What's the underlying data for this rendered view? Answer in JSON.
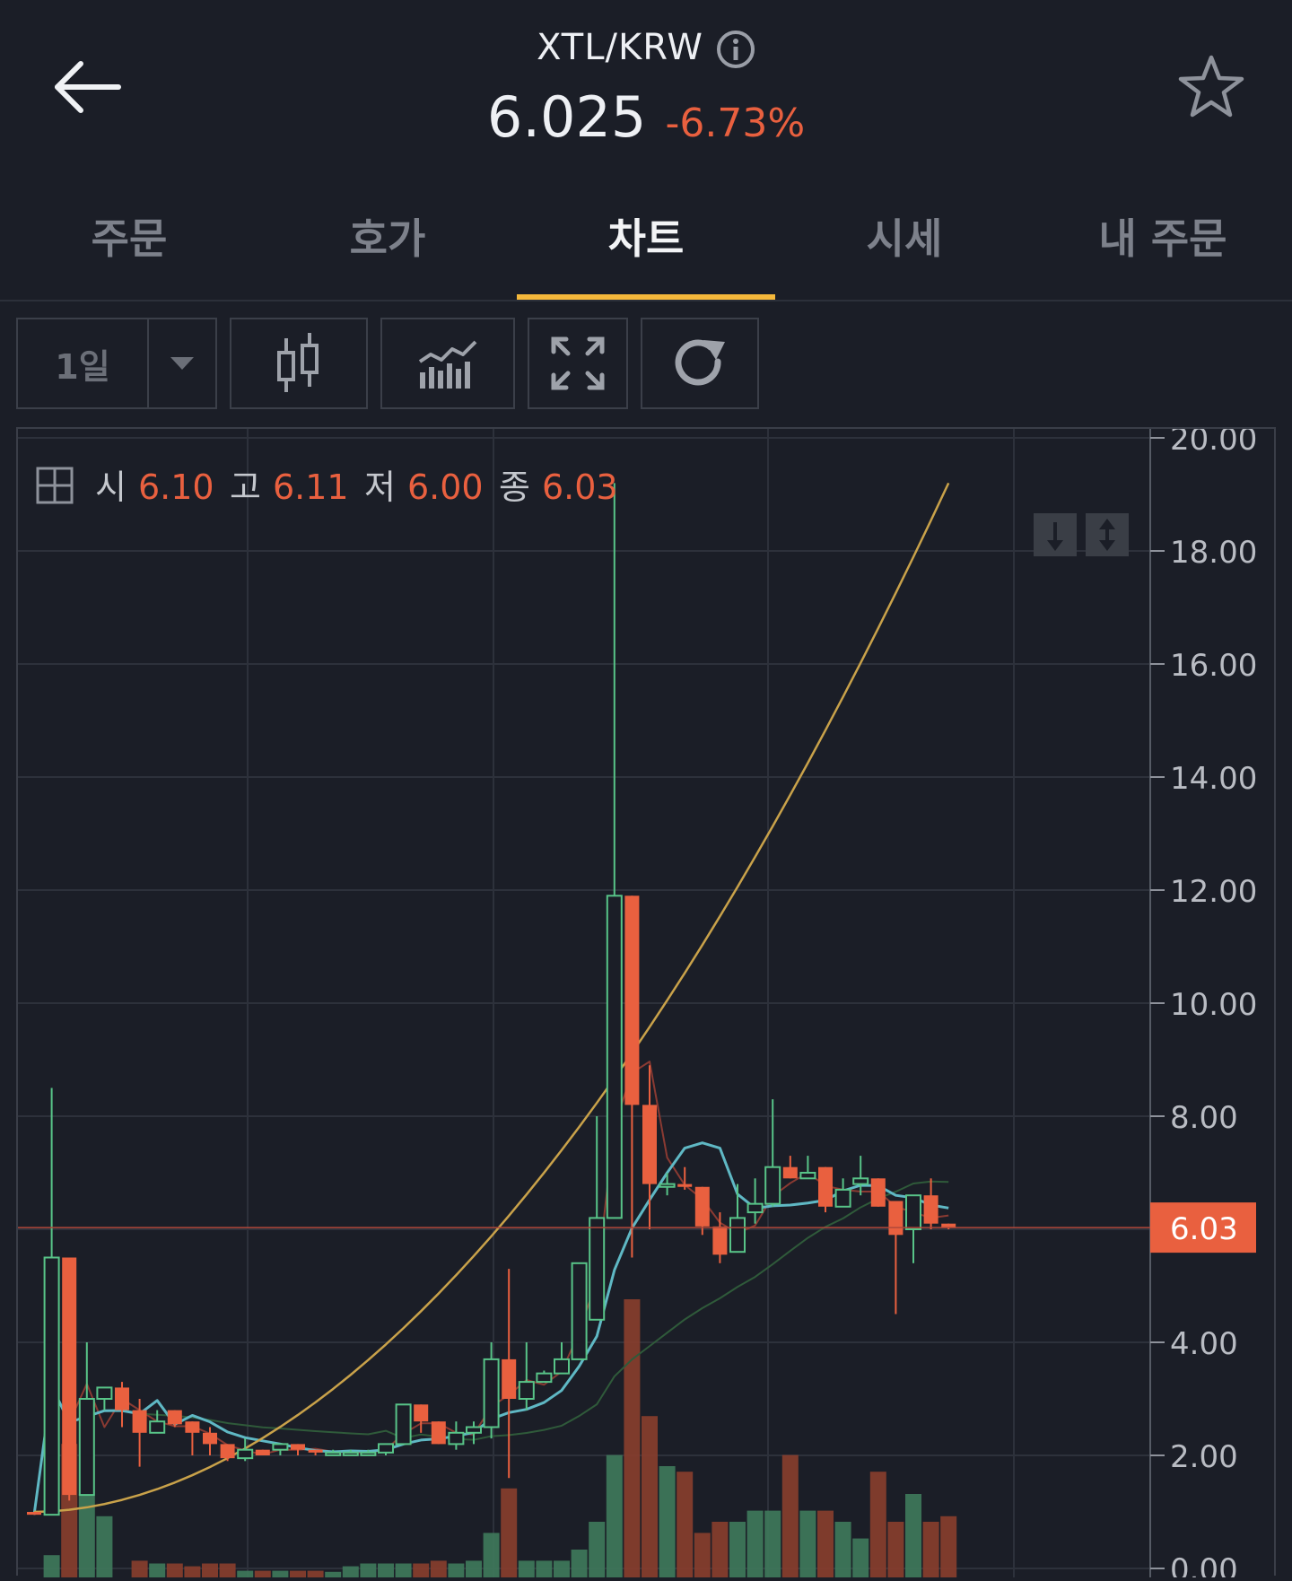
{
  "header": {
    "pair": "XTL/KRW",
    "price": "6.025",
    "change": "-6.73%"
  },
  "tabs": [
    {
      "label": "주문"
    },
    {
      "label": "호가"
    },
    {
      "label": "차트"
    },
    {
      "label": "시세"
    },
    {
      "label": "내 주문"
    }
  ],
  "toolbar": {
    "period": "1일"
  },
  "ohlc": {
    "open_label": "시",
    "open": "6.10",
    "high_label": "고",
    "high": "6.11",
    "low_label": "저",
    "low": "6.00",
    "close_label": "종",
    "close": "6.03"
  },
  "colors": {
    "up": "#58c488",
    "down": "#e9603f",
    "ma_short": "#5fb8c4",
    "ma_long": "#c9a24a",
    "background": "#1b1e27"
  },
  "chart_data": {
    "type": "candlestick",
    "ylim": [
      0,
      20
    ],
    "yticks": [
      "20.00",
      "18.00",
      "16.00",
      "14.00",
      "12.00",
      "10.00",
      "8.00",
      "6.03",
      "4.00",
      "2.00",
      "0.00"
    ],
    "current_price": 6.03,
    "candles": [
      [
        1.0,
        1.0,
        0.95,
        0.95
      ],
      [
        0.95,
        8.5,
        0.95,
        5.5
      ],
      [
        5.5,
        5.5,
        1.2,
        1.3
      ],
      [
        1.3,
        4.0,
        1.3,
        3.0
      ],
      [
        3.0,
        3.2,
        2.8,
        3.2
      ],
      [
        3.2,
        3.3,
        2.5,
        2.8
      ],
      [
        2.8,
        3.0,
        1.8,
        2.4
      ],
      [
        2.4,
        2.8,
        2.4,
        2.6
      ],
      [
        2.8,
        2.8,
        2.5,
        2.55
      ],
      [
        2.6,
        2.6,
        2.0,
        2.4
      ],
      [
        2.4,
        2.5,
        2.0,
        2.2
      ],
      [
        2.2,
        2.2,
        1.9,
        1.95
      ],
      [
        1.95,
        2.3,
        1.9,
        2.1
      ],
      [
        2.1,
        2.1,
        2.0,
        2.0
      ],
      [
        2.1,
        2.2,
        2.0,
        2.2
      ],
      [
        2.2,
        2.2,
        2.0,
        2.1
      ],
      [
        2.1,
        2.1,
        2.0,
        2.05
      ],
      [
        2.05,
        2.1,
        2.0,
        2.05
      ],
      [
        2.05,
        2.1,
        2.0,
        2.05
      ],
      [
        2.05,
        2.1,
        2.0,
        2.05
      ],
      [
        2.05,
        2.2,
        2.0,
        2.2
      ],
      [
        2.2,
        2.9,
        2.2,
        2.9
      ],
      [
        2.9,
        2.9,
        2.4,
        2.6
      ],
      [
        2.6,
        2.6,
        2.2,
        2.2
      ],
      [
        2.2,
        2.6,
        2.1,
        2.4
      ],
      [
        2.4,
        2.6,
        2.2,
        2.5
      ],
      [
        2.5,
        4.0,
        2.3,
        3.7
      ],
      [
        3.7,
        5.3,
        1.6,
        3.0
      ],
      [
        3.0,
        4.0,
        2.8,
        3.3
      ],
      [
        3.3,
        3.5,
        3.3,
        3.45
      ],
      [
        3.45,
        4.0,
        3.45,
        3.7
      ],
      [
        3.7,
        5.4,
        3.7,
        5.4
      ],
      [
        4.4,
        8.0,
        4.4,
        6.2
      ],
      [
        6.2,
        19.2,
        6.2,
        11.9
      ],
      [
        11.9,
        11.9,
        5.5,
        8.2
      ],
      [
        8.2,
        8.9,
        6.0,
        6.8
      ],
      [
        6.75,
        7.0,
        6.6,
        6.8
      ],
      [
        6.8,
        7.1,
        6.7,
        6.75
      ],
      [
        6.75,
        6.75,
        5.9,
        6.05
      ],
      [
        6.05,
        6.3,
        5.4,
        5.55
      ],
      [
        5.6,
        6.8,
        5.6,
        6.2
      ],
      [
        6.3,
        6.9,
        6.1,
        6.45
      ],
      [
        6.45,
        8.3,
        6.4,
        7.1
      ],
      [
        7.1,
        7.3,
        6.9,
        6.9
      ],
      [
        6.9,
        7.3,
        6.9,
        7.0
      ],
      [
        7.1,
        7.1,
        6.3,
        6.4
      ],
      [
        6.4,
        6.9,
        6.4,
        6.7
      ],
      [
        6.8,
        7.3,
        6.6,
        6.9
      ],
      [
        6.9,
        6.9,
        6.4,
        6.4
      ],
      [
        6.5,
        6.5,
        4.5,
        5.9
      ],
      [
        6.0,
        6.6,
        5.4,
        6.6
      ],
      [
        6.6,
        6.9,
        6.0,
        6.1
      ],
      [
        6.1,
        6.1,
        6.0,
        6.03
      ]
    ],
    "volume": [
      0,
      0.4,
      2.4,
      1.5,
      1.1,
      0.0,
      0.3,
      0.25,
      0.25,
      0.2,
      0.25,
      0.25,
      0.12,
      0.12,
      0.12,
      0.12,
      0.12,
      0.1,
      0.2,
      0.25,
      0.25,
      0.25,
      0.25,
      0.3,
      0.25,
      0.3,
      0.8,
      1.6,
      0.3,
      0.3,
      0.3,
      0.5,
      1.0,
      2.2,
      5.0,
      2.9,
      2.0,
      1.9,
      0.8,
      1.0,
      1.0,
      1.2,
      1.2,
      2.2,
      1.2,
      1.2,
      1.0,
      0.7,
      1.9,
      1.0,
      1.5,
      1.0,
      1.1
    ]
  }
}
